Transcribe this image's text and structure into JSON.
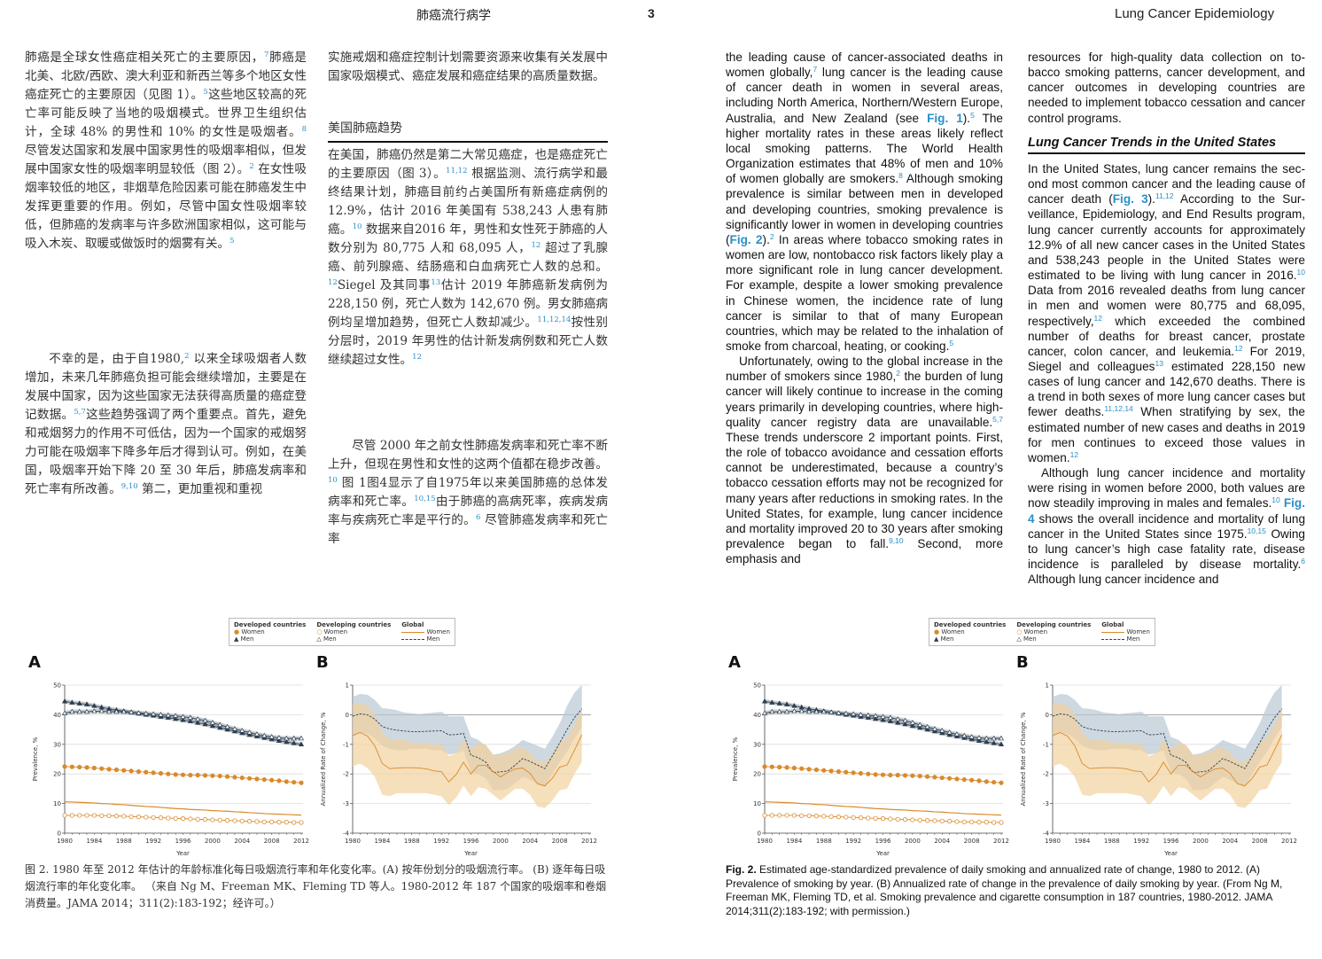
{
  "header": {
    "left_title": "肺癌流行病学",
    "page_number": "3",
    "right_title": "Lung Cancer Epidemiology"
  },
  "zh": {
    "col1_p1": [
      {
        "t": "肺癌是全球女性癌症相关死亡的主要原因，"
      },
      {
        "sup": "7"
      },
      {
        "t": "肺癌是北美、北欧/西欧、澳大利亚和新西兰等多个地区女性癌症死亡的主要原因（见图 1）。"
      },
      {
        "sup": "5"
      },
      {
        "t": "这些地区较高的死亡率可能反映了当地的吸烟模式。世界卫生组织估计，全球 48% 的男性和 10% 的女性是吸烟者。"
      },
      {
        "sup": "8"
      },
      {
        "t": " 尽管发达国家和发展中国家男性的吸烟率相似，但发展中国家女性的吸烟率明显较低（图 2）。"
      },
      {
        "sup": "2"
      },
      {
        "t": " 在女性吸烟率较低的地区，非烟草危险因素可能在肺癌发生中发挥更重要的作用。例如，尽管中国女性吸烟率较低，但肺癌的发病率与许多欧洲国家相似，这可能与吸入木炭、取暖或做饭时的烟雾有关。"
      },
      {
        "sup": "5"
      }
    ],
    "col1_p2": [
      {
        "t": "不幸的是，由于自1980,"
      },
      {
        "sup": "2"
      },
      {
        "t": " 以来全球吸烟者人数增加，未来几年肺癌负担可能会继续增加，主要是在发展中国家，因为这些国家无法获得高质量的癌症登记数据。"
      },
      {
        "sup": "5,7"
      },
      {
        "t": "这些趋势强调了两个重要点。首先，避免和戒烟努力的作用不可低估，因为一个国家的戒烟努力可能在吸烟率下降多年后才得到认可。例如，在美国，吸烟率开始下降 20 至 30 年后，肺癌发病率和死亡率有所改善。"
      },
      {
        "sup": "9,10"
      },
      {
        "t": " 第二，更加重视和重视"
      }
    ],
    "col2_p1": [
      {
        "t": "实施戒烟和癌症控制计划需要资源来收集有关发展中国家吸烟模式、癌症发展和癌症结果的高质量数据。"
      }
    ],
    "heading": "美国肺癌趋势",
    "col2_p2": [
      {
        "t": "在美国，肺癌仍然是第二大常见癌症，也是癌症死亡的主要原因（图 3）。"
      },
      {
        "sup": "11,12"
      },
      {
        "t": " 根据监测、流行病学和最终结果计划，肺癌目前约占美国所有新癌症病例的 12.9%，估计 2016 年美国有 538,243 人患有肺癌。"
      },
      {
        "sup": "10"
      },
      {
        "t": " 数据来自2016 年，男性和女性死于肺癌的人数分别为 80,775 人和 68,095 人，"
      },
      {
        "sup": "12"
      },
      {
        "t": " 超过了乳腺癌、前列腺癌、结肠癌和白血病死亡人数的总和。"
      },
      {
        "sup": "12"
      },
      {
        "t": "Siegel 及其同事"
      },
      {
        "sup": "13"
      },
      {
        "t": "估计 2019 年肺癌新发病例为 228,150 例，死亡人数为 142,670 例。男女肺癌病例均呈增加趋势，但死亡人数却减少。"
      },
      {
        "sup": "11,12,14"
      },
      {
        "t": "按性别分层时，2019 年男性的估计新发病例数和死亡人数继续超过女性。"
      },
      {
        "sup": "12"
      }
    ],
    "col2_p3": [
      {
        "t": "尽管 2000 年之前女性肺癌发病率和死亡率不断上升，但现在男性和女性的这两个值都在稳步改善。"
      },
      {
        "sup": "10"
      },
      {
        "t": " 图 1图4显示了自1975年以来美国肺癌的总体发病率和死亡率。"
      },
      {
        "sup": "10,15"
      },
      {
        "t": "由于肺癌的高病死率，疾病发病率与疾病死亡率是平行的。"
      },
      {
        "sup": "6"
      },
      {
        "t": " 尽管肺癌发病率和死亡率"
      }
    ],
    "caption": "图 2. 1980 年至 2012 年估计的年龄标准化每日吸烟流行率和年化变化率。(A) 按年份划分的吸烟流行率。 (B) 逐年每日吸烟流行率的年化变化率。 （来自 Ng M、Freeman MK、Fleming TD 等人。1980-2012 年 187 个国家的吸烟率和卷烟消费量。JAMA 2014；311(2):183-192；经许可。）"
  },
  "en": {
    "col1_p1": [
      {
        "t": "the leading cause of cancer-associated deaths in women globally,"
      },
      {
        "sup": "7"
      },
      {
        "t": " lung cancer is the leading cause of cancer death in women in several areas, including North America, Northern/Western Europe, Australia, and New Zealand (see "
      },
      {
        "link": "Fig. 1"
      },
      {
        "t": ")."
      },
      {
        "sup": "5"
      },
      {
        "t": " The higher mortality rates in these areas likely reflect local smoking patterns. The World Health Organization estimates that 48% of men and 10% of women globally are smokers."
      },
      {
        "sup": "8"
      },
      {
        "t": " Although smoking prevalence is similar between men in developed and developing countries, smoking prevalence is significantly lower in women in developing countries ("
      },
      {
        "link": "Fig. 2"
      },
      {
        "t": ")."
      },
      {
        "sup": "2"
      },
      {
        "t": " In areas where to­bacco smoking rates in women are low, nonto­bacco risk factors likely play a more significant role in lung cancer development. For example, despite a lower smoking prevalence in Chinese women, the incidence rate of lung cancer is similar to that of many European countries, which may be related to the inhalation of smoke from charcoal, heating, or cooking."
      },
      {
        "sup": "5"
      }
    ],
    "col1_p2": [
      {
        "t": "Unfortunately, owing to the global increase in the number of smokers since 1980,"
      },
      {
        "sup": "2"
      },
      {
        "t": " the burden of lung cancer will likely continue to increase in the coming years primarily in developing coun­tries, where high-quality cancer registry data are unavailable."
      },
      {
        "sup": "5,7"
      },
      {
        "t": " These trends underscore 2 impor­tant points. First, the role of tobacco avoidance and cessation efforts cannot be underestimated, because a country’s tobacco cessation efforts may not be recognized for many years after reduc­tions in smoking rates. In the United States, for example, lung cancer incidence and mortality improved 20 to 30 years after smoking prevalence began to fall."
      },
      {
        "sup": "9,10"
      },
      {
        "t": " Second, more emphasis and"
      }
    ],
    "col2_p1": [
      {
        "t": "resources for high-quality data collection on to­bacco smoking patterns, cancer development, and cancer outcomes in developing countries are needed to implement tobacco cessation and can­cer control programs."
      }
    ],
    "heading": "Lung Cancer Trends in the United States",
    "col2_p2": [
      {
        "t": "In the United States, lung cancer remains the sec­ond most common cancer and the leading cause of cancer death ("
      },
      {
        "link": "Fig. 3"
      },
      {
        "t": ")."
      },
      {
        "sup": "11,12"
      },
      {
        "t": " According to the Sur­veillance, Epidemiology, and End Results pro­gram, lung cancer currently accounts for approximately 12.9% of all new cancer cases in the United States and 538,243 people in the United States were estimated to be living with lung cancer in 2016."
      },
      {
        "sup": "10"
      },
      {
        "t": " Data from 2016 revealed deaths from lung cancer in men and women were 80,775 and 68,095, respectively,"
      },
      {
        "sup": "12"
      },
      {
        "t": " which exceeded the combined number of deaths for breast cancer, prostate cancer, colon cancer, and leukemia."
      },
      {
        "sup": "12"
      },
      {
        "t": " For 2019, Siegel and colleagues"
      },
      {
        "sup": "13"
      },
      {
        "t": " estimated 228,150 new cases of lung cancer and 142,670 deaths. There is a trend in both sexes of more lung cancer cases but fewer deaths."
      },
      {
        "sup": "11,12,14"
      },
      {
        "t": " When stratifying by sex, the estimated number of new cases and deaths in 2019 for men continues to exceed those values in women."
      },
      {
        "sup": "12"
      }
    ],
    "col2_p3": [
      {
        "t": "Although lung cancer incidence and mortality were rising in women before 2000, both values are now steadily improving in males and fe­males."
      },
      {
        "sup": "10"
      },
      {
        "t": " "
      },
      {
        "link": "Fig. 4"
      },
      {
        "t": " shows the overall incidence and mortality of lung cancer in the United States since 1975."
      },
      {
        "sup": "10,15"
      },
      {
        "t": " Owing to lung cancer’s high case fatality rate, disease incidence is paralleled by disease mortality."
      },
      {
        "sup": "6"
      },
      {
        "t": " Although lung cancer incidence and"
      }
    ],
    "caption_label": "Fig. 2.",
    "caption": " Estimated age-standardized prevalence of daily smoking and annualized rate of change, 1980 to 2012. (A) Prevalence of smoking by year. (B) Annualized rate of change in the prevalence of daily smoking by year. (From Ng M, Freeman MK, Fleming TD, et al. Smoking prevalence and cigarette consumption in 187 countries, 1980-2012. JAMA 2014;311(2):183-192; with permission.)"
  },
  "legend": {
    "developed": "Developed countries",
    "developing": "Developing countries",
    "global": "Global",
    "women": "Women",
    "men": "Men"
  },
  "colors": {
    "navy": "#2c3e50",
    "orange": "#d98a2a",
    "band_men": "#b9c8d4",
    "band_women": "#f2d29e",
    "link": "#2a8fc8"
  },
  "chart_data": [
    {
      "type": "line",
      "panel": "A",
      "xlabel": "Year",
      "ylabel": "Prevalence, %",
      "xlim": [
        1980,
        2012
      ],
      "ylim": [
        0,
        50
      ],
      "xticks": [
        1980,
        1984,
        1988,
        1992,
        1996,
        2000,
        2004,
        2008,
        2012
      ],
      "yticks": [
        0,
        10,
        20,
        30,
        40,
        50
      ],
      "grid": true,
      "x": [
        1980,
        1981,
        1982,
        1983,
        1984,
        1985,
        1986,
        1987,
        1988,
        1989,
        1990,
        1991,
        1992,
        1993,
        1994,
        1995,
        1996,
        1997,
        1998,
        1999,
        2000,
        2001,
        2002,
        2003,
        2004,
        2005,
        2006,
        2007,
        2008,
        2009,
        2010,
        2011,
        2012
      ],
      "series": [
        {
          "name": "Developed countries Men",
          "marker": "triangle-filled",
          "color": "#2c3e50",
          "values": [
            44.5,
            44.1,
            43.8,
            43.5,
            43.0,
            42.5,
            42.0,
            41.6,
            41.2,
            40.8,
            40.4,
            40.0,
            39.7,
            39.3,
            39.0,
            38.6,
            38.2,
            37.8,
            37.3,
            36.8,
            36.2,
            35.6,
            35.0,
            34.4,
            33.8,
            33.2,
            32.7,
            32.2,
            31.7,
            31.2,
            30.8,
            30.4,
            30.0
          ]
        },
        {
          "name": "Developing countries Men",
          "marker": "triangle-open",
          "color": "#2c3e50",
          "values": [
            40.5,
            41.0,
            41.0,
            41.0,
            41.2,
            41.2,
            41.0,
            41.0,
            41.0,
            40.8,
            40.6,
            40.4,
            40.2,
            40.0,
            39.8,
            39.6,
            39.3,
            39.0,
            38.5,
            38.0,
            37.3,
            36.6,
            35.9,
            35.2,
            34.6,
            34.0,
            33.4,
            32.9,
            32.5,
            32.2,
            32.0,
            32.0,
            32.0
          ]
        },
        {
          "name": "Developed countries Women",
          "marker": "circle-filled",
          "color": "#d98a2a",
          "values": [
            22.5,
            22.4,
            22.3,
            22.2,
            22.0,
            21.8,
            21.6,
            21.4,
            21.2,
            21.0,
            20.8,
            20.6,
            20.4,
            20.2,
            20.0,
            19.8,
            19.7,
            19.6,
            19.6,
            19.5,
            19.4,
            19.3,
            19.1,
            18.9,
            18.7,
            18.5,
            18.3,
            18.1,
            17.9,
            17.7,
            17.4,
            17.2,
            17.0
          ]
        },
        {
          "name": "Global Women",
          "marker": "none",
          "color": "#d98a2a",
          "values": [
            10.6,
            10.5,
            10.4,
            10.3,
            10.2,
            10.0,
            9.9,
            9.7,
            9.6,
            9.4,
            9.2,
            9.0,
            8.9,
            8.7,
            8.5,
            8.3,
            8.2,
            8.0,
            7.9,
            7.8,
            7.6,
            7.5,
            7.4,
            7.2,
            7.1,
            6.9,
            6.8,
            6.6,
            6.5,
            6.4,
            6.3,
            6.2,
            6.1
          ]
        },
        {
          "name": "Developing countries Women",
          "marker": "circle-open",
          "color": "#d98a2a",
          "values": [
            6.0,
            6.0,
            6.0,
            6.0,
            6.0,
            5.9,
            5.9,
            5.8,
            5.7,
            5.6,
            5.5,
            5.4,
            5.3,
            5.2,
            5.1,
            5.0,
            4.9,
            4.8,
            4.7,
            4.6,
            4.5,
            4.4,
            4.3,
            4.2,
            4.1,
            4.0,
            3.9,
            3.8,
            3.8,
            3.7,
            3.7,
            3.6,
            3.6
          ]
        }
      ]
    },
    {
      "type": "line",
      "panel": "B",
      "xlabel": "Year",
      "ylabel": "Annualized Rate of Change, %",
      "xlim": [
        1980,
        2012
      ],
      "ylim": [
        -4,
        1
      ],
      "xticks": [
        1980,
        1984,
        1988,
        1992,
        1996,
        2000,
        2004,
        2008,
        2012
      ],
      "yticks": [
        -4,
        -3,
        -2,
        -1,
        0,
        1
      ],
      "grid": true,
      "x": [
        1980,
        1981,
        1982,
        1983,
        1984,
        1985,
        1986,
        1987,
        1988,
        1989,
        1990,
        1991,
        1992,
        1993,
        1994,
        1995,
        1996,
        1997,
        1998,
        1999,
        2000,
        2001,
        2002,
        2003,
        2004,
        2005,
        2006,
        2007,
        2008,
        2009,
        2010,
        2011
      ],
      "series": [
        {
          "name": "Global Men",
          "style": "dashed",
          "color": "#2c3e50",
          "band_color": "#b9c8d4",
          "values": [
            -0.05,
            0.03,
            0,
            -0.15,
            -0.4,
            -0.48,
            -0.52,
            -0.55,
            -0.57,
            -0.57,
            -0.56,
            -0.55,
            -0.54,
            -0.68,
            -0.67,
            -0.63,
            -1.37,
            -1.45,
            -1.6,
            -1.95,
            -1.93,
            -1.9,
            -1.7,
            -1.48,
            -1.58,
            -1.7,
            -1.82,
            -1.4,
            -0.95,
            -0.5,
            -0.1,
            0.2
          ],
          "upper": [
            0.6,
            0.7,
            0.68,
            0.5,
            0.22,
            0.2,
            0.15,
            0.07,
            0.05,
            0.02,
            0.05,
            0.07,
            0.1,
            -0.05,
            -0.05,
            -0.05,
            -0.75,
            -0.85,
            -1.05,
            -1.35,
            -1.3,
            -1.2,
            -1.05,
            -0.85,
            -0.95,
            -1.05,
            -1.15,
            -0.75,
            -0.3,
            0.3,
            0.75,
            1.0
          ],
          "lower": [
            -0.75,
            -0.6,
            -0.65,
            -0.8,
            -1.05,
            -1.15,
            -1.2,
            -1.2,
            -1.15,
            -1.15,
            -1.15,
            -1.2,
            -1.2,
            -1.35,
            -1.3,
            -1.2,
            -1.95,
            -2.0,
            -2.15,
            -2.55,
            -2.55,
            -2.5,
            -2.3,
            -2.1,
            -2.2,
            -2.35,
            -2.45,
            -2.0,
            -1.6,
            -1.25,
            -0.8,
            -0.4
          ]
        },
        {
          "name": "Global Women",
          "style": "solid",
          "color": "#d98a2a",
          "band_color": "#f2d29e",
          "values": [
            -0.7,
            -0.6,
            -0.72,
            -1.05,
            -1.65,
            -1.82,
            -1.8,
            -1.79,
            -1.79,
            -1.8,
            -1.83,
            -1.9,
            -1.92,
            -2.27,
            -2.02,
            -1.6,
            -2.0,
            -1.71,
            -1.71,
            -1.92,
            -2.1,
            -1.95,
            -1.83,
            -1.8,
            -1.98,
            -2.33,
            -2.4,
            -2.15,
            -1.77,
            -1.7,
            -1.2,
            -0.68
          ],
          "upper": [
            0.35,
            0.4,
            0.3,
            0,
            -0.6,
            -0.85,
            -0.85,
            -0.85,
            -0.95,
            -0.95,
            -0.95,
            -1.0,
            -1.0,
            -1.4,
            -1.3,
            -0.85,
            -1.15,
            -0.95,
            -1.0,
            -1.35,
            -1.35,
            -1.3,
            -1.15,
            -1.1,
            -1.3,
            -1.55,
            -1.6,
            -1.35,
            -0.95,
            -0.75,
            -0.35,
            0.2
          ],
          "lower": [
            -1.75,
            -1.65,
            -1.8,
            -2.1,
            -2.7,
            -2.75,
            -2.65,
            -2.65,
            -2.65,
            -2.65,
            -2.65,
            -2.7,
            -2.75,
            -3.05,
            -2.8,
            -2.4,
            -2.75,
            -2.45,
            -2.5,
            -2.7,
            -2.9,
            -2.7,
            -2.5,
            -2.5,
            -2.7,
            -3.1,
            -3.15,
            -2.9,
            -2.55,
            -2.5,
            -2.0,
            -1.6
          ]
        }
      ]
    }
  ]
}
